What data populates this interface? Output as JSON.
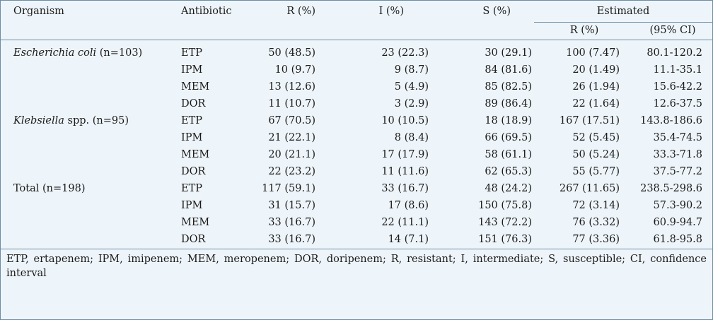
{
  "table": {
    "headers": {
      "organism": "Organism",
      "antibiotic": "Antibiotic",
      "r": "R (%)",
      "i": "I (%)",
      "s": "S (%)",
      "estimated": "Estimated",
      "est_r": "R (%)",
      "est_ci": "(95% CI)"
    },
    "groups": [
      {
        "organism_italic": "Escherichia coli",
        "organism_rest": " (n=103)",
        "rows": [
          {
            "antibiotic": "ETP",
            "r": "50 (48.5)",
            "i": "23 (22.3)",
            "s": "30 (29.1)",
            "est_r": "100 (7.47)",
            "ci": "80.1-120.2"
          },
          {
            "antibiotic": "IPM",
            "r": "10 (9.7)",
            "i": "9 (8.7)",
            "s": "84 (81.6)",
            "est_r": "20 (1.49)",
            "ci": "11.1-35.1"
          },
          {
            "antibiotic": "MEM",
            "r": "13 (12.6)",
            "i": "5 (4.9)",
            "s": "85 (82.5)",
            "est_r": "26 (1.94)",
            "ci": "15.6-42.2"
          },
          {
            "antibiotic": "DOR",
            "r": "11 (10.7)",
            "i": "3 (2.9)",
            "s": "89 (86.4)",
            "est_r": "22 (1.64)",
            "ci": "12.6-37.5"
          }
        ]
      },
      {
        "organism_italic": "Klebsiella",
        "organism_rest": " spp. (n=95)",
        "rows": [
          {
            "antibiotic": "ETP",
            "r": "67 (70.5)",
            "i": "10 (10.5)",
            "s": "18 (18.9)",
            "est_r": "167 (17.51)",
            "ci": "143.8-186.6"
          },
          {
            "antibiotic": "IPM",
            "r": "21 (22.1)",
            "i": "8 (8.4)",
            "s": "66 (69.5)",
            "est_r": "52 (5.45)",
            "ci": "35.4-74.5"
          },
          {
            "antibiotic": "MEM",
            "r": "20 (21.1)",
            "i": "17 (17.9)",
            "s": "58 (61.1)",
            "est_r": "50 (5.24)",
            "ci": "33.3-71.8"
          },
          {
            "antibiotic": "DOR",
            "r": "22 (23.2)",
            "i": "11 (11.6)",
            "s": "62 (65.3)",
            "est_r": "55 (5.77)",
            "ci": "37.5-77.2"
          }
        ]
      },
      {
        "organism_italic": "",
        "organism_rest": "Total (n=198)",
        "rows": [
          {
            "antibiotic": "ETP",
            "r": "117 (59.1)",
            "i": "33 (16.7)",
            "s": "48 (24.2)",
            "est_r": "267 (11.65)",
            "ci": "238.5-298.6"
          },
          {
            "antibiotic": "IPM",
            "r": "31 (15.7)",
            "i": "17 (8.6)",
            "s": "150 (75.8)",
            "est_r": "72 (3.14)",
            "ci": "57.3-90.2"
          },
          {
            "antibiotic": "MEM",
            "r": "33 (16.7)",
            "i": "22 (11.1)",
            "s": "143 (72.2)",
            "est_r": "76 (3.32)",
            "ci": "60.9-94.7"
          },
          {
            "antibiotic": "DOR",
            "r": "33 (16.7)",
            "i": "14 (7.1)",
            "s": "151 (76.3)",
            "est_r": "77 (3.36)",
            "ci": "61.8-95.8"
          }
        ]
      }
    ],
    "footnote": "ETP, ertapenem; IPM, imipenem; MEM, meropenem; DOR, doripenem; R, resistant; I, intermediate; S, susceptible; CI, confidence interval"
  },
  "colors": {
    "background": "#eef5fa",
    "rule": "#6b8ca3",
    "text": "#1a1a1a"
  }
}
